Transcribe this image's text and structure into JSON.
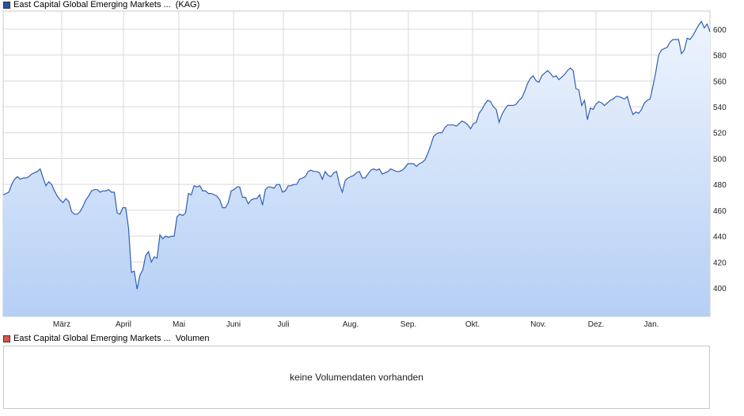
{
  "legend_price": {
    "label": "East Capital Global Emerging Markets ...",
    "symbol": "(KAG)",
    "color": "#2a52a8"
  },
  "legend_volume": {
    "label": "East Capital Global Emerging Markets ...",
    "symbol": "Volumen",
    "color": "#d9534f"
  },
  "volume_message": "keine Volumendaten vorhanden",
  "chart_data": {
    "type": "area",
    "title": "",
    "xlabel": "",
    "ylabel": "",
    "ylim": [
      378,
      614
    ],
    "y_ticks": [
      400,
      420,
      440,
      460,
      480,
      500,
      520,
      540,
      560,
      580,
      600
    ],
    "x_ticks": [
      "März",
      "April",
      "Mai",
      "Juni",
      "Juli",
      "Aug.",
      "Sep.",
      "Okt.",
      "Nov.",
      "Dez.",
      "Jan."
    ],
    "grid": true,
    "line_color": "#2e5fb8",
    "fill_top_color": "#eef4fd",
    "fill_bottom_color": "#b5cff5",
    "series": [
      {
        "values": [
          472,
          473,
          474,
          480,
          484,
          486,
          484,
          485,
          485,
          486,
          488,
          489,
          490,
          492,
          485,
          479,
          482,
          480,
          475,
          471,
          468,
          466,
          469,
          467,
          459,
          457,
          457,
          459,
          463,
          468,
          471,
          475,
          476,
          476,
          474,
          475,
          475,
          476,
          474,
          474,
          458,
          457,
          462,
          462,
          446,
          412,
          413,
          399,
          410,
          414,
          425,
          428,
          420,
          424,
          423,
          441,
          438,
          440,
          439,
          440,
          440,
          455,
          457,
          456,
          458,
          473,
          472,
          479,
          478,
          479,
          475,
          475,
          473,
          473,
          472,
          471,
          468,
          462,
          462,
          466,
          475,
          476,
          478,
          478,
          470,
          470,
          465,
          468,
          469,
          469,
          472,
          464,
          476,
          478,
          478,
          477,
          480,
          480,
          474,
          475,
          479,
          479,
          480,
          480,
          484,
          485,
          486,
          490,
          491,
          490,
          490,
          489,
          484,
          490,
          487,
          486,
          489,
          490,
          480,
          474,
          483,
          485,
          486,
          487,
          489,
          490,
          485,
          485,
          488,
          491,
          492,
          491,
          492,
          488,
          489,
          490,
          492,
          491,
          490,
          490,
          491,
          493,
          496,
          496,
          496,
          494,
          496,
          497,
          499,
          504,
          510,
          517,
          519,
          520,
          520,
          524,
          526,
          526,
          526,
          525,
          527,
          529,
          528,
          526,
          523,
          527,
          528,
          535,
          538,
          542,
          545,
          544,
          540,
          538,
          528,
          534,
          538,
          541,
          541,
          541,
          542,
          545,
          547,
          552,
          558,
          562,
          564,
          560,
          559,
          564,
          566,
          568,
          566,
          563,
          564,
          561,
          563,
          565,
          568,
          570,
          568,
          554,
          553,
          541,
          545,
          530,
          539,
          538,
          542,
          544,
          543,
          541,
          543,
          545,
          546,
          548,
          548,
          547,
          546,
          548,
          540,
          534,
          536,
          535,
          538,
          543,
          545,
          546,
          556,
          567,
          580,
          584,
          585,
          586,
          590,
          592,
          592,
          592,
          581,
          584,
          593,
          592,
          595,
          599,
          603,
          606,
          601,
          604,
          598
        ]
      }
    ]
  }
}
